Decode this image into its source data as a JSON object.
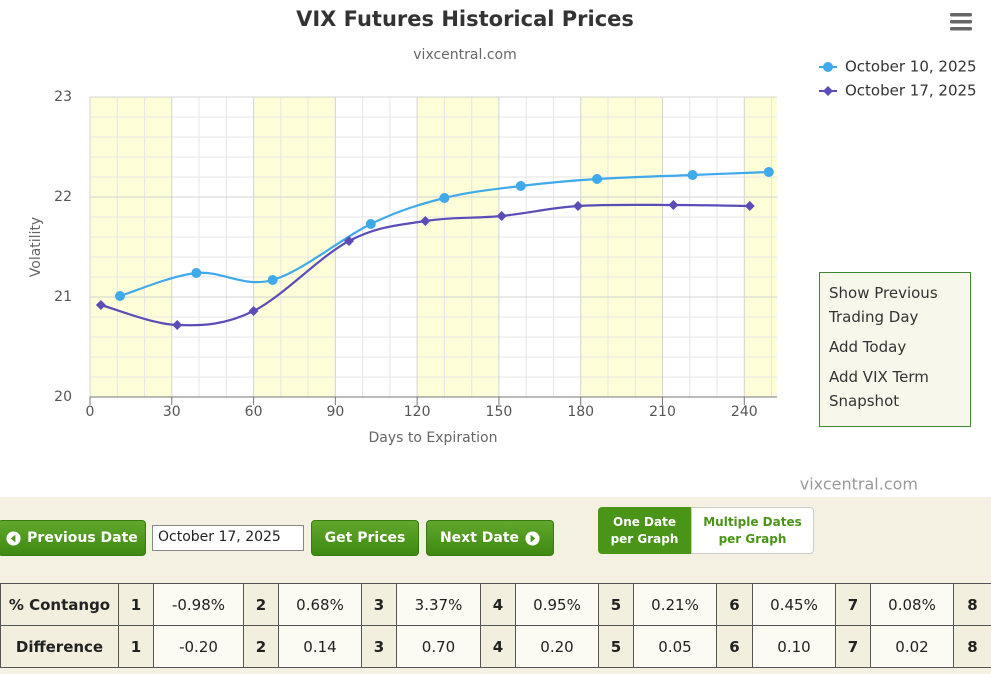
{
  "chart_data": {
    "type": "line",
    "title": "VIX Futures Historical Prices",
    "subtitle": "vixcentral.com",
    "credit": "vixcentral.com",
    "x_label": "Days to Expiration",
    "y_label": "Volatility",
    "xlim": [
      0,
      252
    ],
    "xticks": [
      0,
      30,
      60,
      90,
      120,
      150,
      180,
      210,
      240
    ],
    "ylim": [
      20,
      23
    ],
    "yticks": [
      20,
      21,
      22,
      23
    ],
    "grid": true,
    "plot_bands_color": "#fdfdd8",
    "legend": "top-right",
    "series": [
      {
        "name": "October 10, 2025",
        "color": "#3fa9ea",
        "marker": "circle",
        "x": [
          11,
          39,
          67,
          103,
          130,
          158,
          186,
          221,
          249
        ],
        "values": [
          21.01,
          21.24,
          21.17,
          21.73,
          21.99,
          22.11,
          22.18,
          22.22,
          22.25
        ]
      },
      {
        "name": "October 17, 2025",
        "color": "#5b4db8",
        "marker": "diamond",
        "x": [
          4,
          32,
          60,
          95,
          123,
          151,
          179,
          214,
          242
        ],
        "values": [
          20.92,
          20.72,
          20.86,
          21.56,
          21.76,
          21.81,
          21.91,
          21.92,
          21.91
        ]
      }
    ]
  },
  "menu": {
    "items": [
      "Show Previous Trading Day",
      "Add Today",
      "Add VIX Term Snapshot"
    ]
  },
  "controls": {
    "previous": "Previous Date",
    "date": "October 17, 2025",
    "get": "Get Prices",
    "next": "Next Date",
    "mode_one": "One Date per Graph",
    "mode_multiple": "Multiple Dates per Graph"
  },
  "table": {
    "rows": [
      [
        "% Contango",
        "1",
        "-0.98%",
        "2",
        "0.68%",
        "3",
        "3.37%",
        "4",
        "0.95%",
        "5",
        "0.21%",
        "6",
        "0.45%",
        "7",
        "0.08%",
        "8"
      ],
      [
        "Difference",
        "1",
        "-0.20",
        "2",
        "0.14",
        "3",
        "0.70",
        "4",
        "0.20",
        "5",
        "0.05",
        "6",
        "0.10",
        "7",
        "0.02",
        "8"
      ]
    ]
  }
}
